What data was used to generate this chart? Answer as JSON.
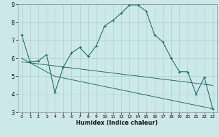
{
  "title": "",
  "xlabel": "Humidex (Indice chaleur)",
  "xlim": [
    -0.5,
    23.5
  ],
  "ylim": [
    3,
    9
  ],
  "xticks": [
    0,
    1,
    2,
    3,
    4,
    5,
    6,
    7,
    8,
    9,
    10,
    11,
    12,
    13,
    14,
    15,
    16,
    17,
    18,
    19,
    20,
    21,
    22,
    23
  ],
  "yticks": [
    3,
    4,
    5,
    6,
    7,
    8,
    9
  ],
  "bg_color": "#cce8e8",
  "line_color": "#1a6e6a",
  "grid_color": "#aad0d0",
  "line1_x": [
    0,
    1,
    2,
    3,
    4,
    5,
    6,
    7,
    8,
    9,
    10,
    11,
    12,
    13,
    14,
    15,
    16,
    17,
    18,
    19,
    20,
    21,
    22,
    23
  ],
  "line1_y": [
    7.3,
    5.8,
    5.85,
    6.2,
    4.1,
    5.5,
    6.3,
    6.6,
    6.1,
    6.7,
    7.8,
    8.1,
    8.5,
    8.95,
    8.95,
    8.6,
    7.3,
    6.9,
    6.0,
    5.25,
    5.25,
    4.0,
    4.95,
    3.2
  ],
  "line2_x": [
    0,
    4,
    23
  ],
  "line2_y": [
    6.0,
    5.0,
    3.2
  ],
  "line3_x": [
    0,
    23
  ],
  "line3_y": [
    5.8,
    4.5
  ]
}
